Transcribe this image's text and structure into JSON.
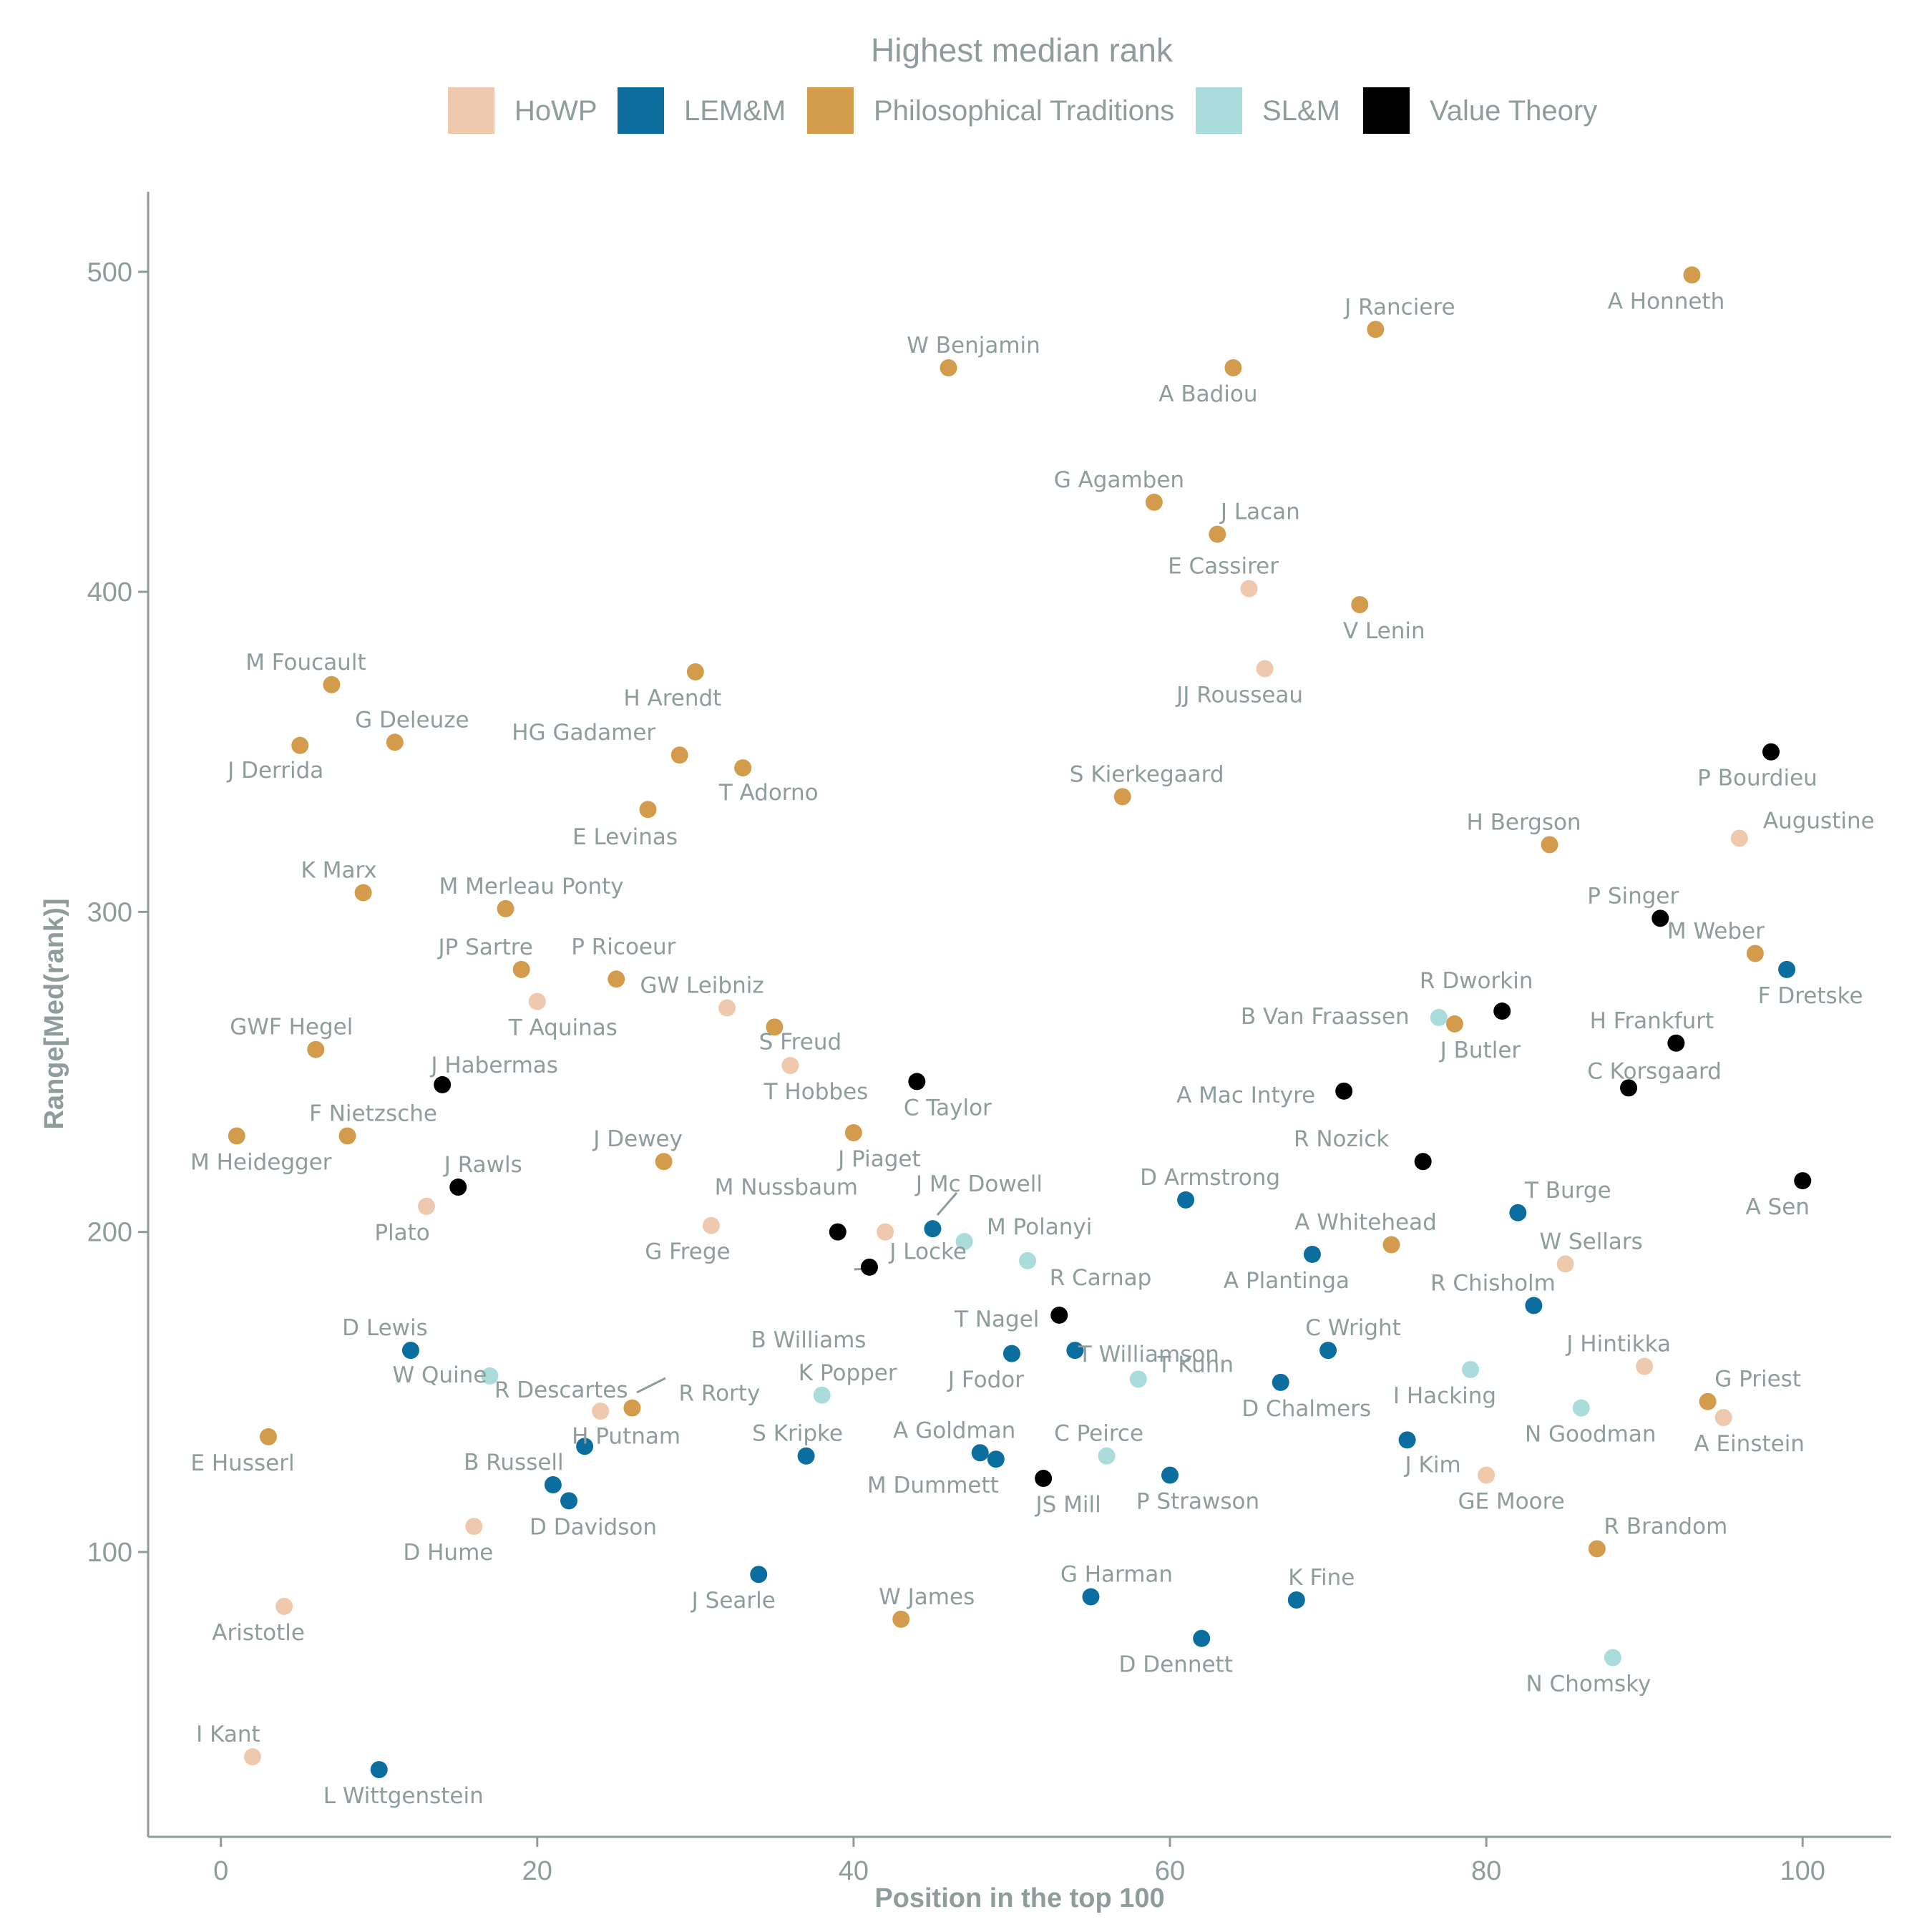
{
  "chart_data": {
    "type": "scatter",
    "xlabel": "Position in the top 100",
    "ylabel": "Range[Med(rank)]",
    "xlim": [
      -4.6,
      105.6
    ],
    "ylim": [
      11,
      525
    ],
    "xticks": [
      0,
      20,
      40,
      60,
      80,
      100
    ],
    "yticks": [
      100,
      200,
      300,
      400,
      500
    ],
    "grid": false,
    "legend": {
      "title": "Highest median rank",
      "placement": "top",
      "entries": [
        {
          "key": "HoWP",
          "label": "HoWP",
          "color": "#efc9ae"
        },
        {
          "key": "LEMM",
          "label": "LEM&M",
          "color": "#0b6e9f"
        },
        {
          "key": "PT",
          "label": "Philosophical Traditions",
          "color": "#d39c4c"
        },
        {
          "key": "SLM",
          "label": "SL&M",
          "color": "#aadcdc"
        },
        {
          "key": "VT",
          "label": "Value Theory",
          "color": "#000000"
        }
      ]
    },
    "points": [
      {
        "name": "M Heidegger",
        "x": 1,
        "y": 230,
        "group": "PT"
      },
      {
        "name": "I Kant",
        "x": 2,
        "y": 36,
        "group": "HoWP"
      },
      {
        "name": "E Husserl",
        "x": 3,
        "y": 136,
        "group": "PT"
      },
      {
        "name": "Aristotle",
        "x": 4,
        "y": 83,
        "group": "HoWP"
      },
      {
        "name": "J Derrida",
        "x": 5,
        "y": 352,
        "group": "PT"
      },
      {
        "name": "GWF Hegel",
        "x": 6,
        "y": 257,
        "group": "PT"
      },
      {
        "name": "M Foucault",
        "x": 7,
        "y": 371,
        "group": "PT"
      },
      {
        "name": "F Nietzsche",
        "x": 8,
        "y": 230,
        "group": "PT"
      },
      {
        "name": "K Marx",
        "x": 9,
        "y": 306,
        "group": "PT"
      },
      {
        "name": "L Wittgenstein",
        "x": 10,
        "y": 32,
        "group": "LEMM"
      },
      {
        "name": "G Deleuze",
        "x": 11,
        "y": 353,
        "group": "PT"
      },
      {
        "name": "D Lewis",
        "x": 12,
        "y": 163,
        "group": "LEMM"
      },
      {
        "name": "Plato",
        "x": 13,
        "y": 208,
        "group": "HoWP"
      },
      {
        "name": "J Habermas",
        "x": 14,
        "y": 246,
        "group": "VT"
      },
      {
        "name": "J Rawls",
        "x": 15,
        "y": 214,
        "group": "VT"
      },
      {
        "name": "D Hume",
        "x": 16,
        "y": 108,
        "group": "HoWP"
      },
      {
        "name": "W Quine",
        "x": 17,
        "y": 155,
        "group": "SLM"
      },
      {
        "name": "M Merleau Ponty",
        "x": 18,
        "y": 301,
        "group": "PT"
      },
      {
        "name": "JP Sartre",
        "x": 19,
        "y": 282,
        "group": "PT"
      },
      {
        "name": "T Aquinas",
        "x": 20,
        "y": 272,
        "group": "HoWP"
      },
      {
        "name": "B Russell",
        "x": 21,
        "y": 121,
        "group": "LEMM"
      },
      {
        "name": "D Davidson",
        "x": 22,
        "y": 116,
        "group": "LEMM"
      },
      {
        "name": "H Putnam",
        "x": 23,
        "y": 133,
        "group": "LEMM"
      },
      {
        "name": "R Descartes",
        "x": 24,
        "y": 144,
        "group": "HoWP"
      },
      {
        "name": "P Ricoeur",
        "x": 25,
        "y": 279,
        "group": "PT"
      },
      {
        "name": "R Rorty",
        "x": 26,
        "y": 145,
        "group": "PT"
      },
      {
        "name": "E Levinas",
        "x": 27,
        "y": 332,
        "group": "PT"
      },
      {
        "name": "J Dewey",
        "x": 28,
        "y": 222,
        "group": "PT"
      },
      {
        "name": "HG Gadamer",
        "x": 29,
        "y": 349,
        "group": "PT"
      },
      {
        "name": "H Arendt",
        "x": 30,
        "y": 375,
        "group": "PT"
      },
      {
        "name": "G Frege",
        "x": 31,
        "y": 202,
        "group": "HoWP"
      },
      {
        "name": "GW Leibniz",
        "x": 32,
        "y": 270,
        "group": "HoWP"
      },
      {
        "name": "T Adorno",
        "x": 33,
        "y": 345,
        "group": "PT"
      },
      {
        "name": "J Searle",
        "x": 34,
        "y": 93,
        "group": "LEMM"
      },
      {
        "name": "S Freud",
        "x": 35,
        "y": 264,
        "group": "PT"
      },
      {
        "name": "T Hobbes",
        "x": 36,
        "y": 252,
        "group": "HoWP"
      },
      {
        "name": "S Kripke",
        "x": 37,
        "y": 130,
        "group": "LEMM"
      },
      {
        "name": "K Popper",
        "x": 38,
        "y": 149,
        "group": "SLM"
      },
      {
        "name": "M Nussbaum",
        "x": 39,
        "y": 200,
        "group": "VT"
      },
      {
        "name": "J Piaget",
        "x": 40,
        "y": 231,
        "group": "PT"
      },
      {
        "name": "B Williams",
        "x": 41,
        "y": 189,
        "group": "VT"
      },
      {
        "name": "J Locke",
        "x": 42,
        "y": 200,
        "group": "HoWP"
      },
      {
        "name": "W James",
        "x": 43,
        "y": 79,
        "group": "PT"
      },
      {
        "name": "C Taylor",
        "x": 44,
        "y": 247,
        "group": "VT"
      },
      {
        "name": "J Mc Dowell",
        "x": 45,
        "y": 201,
        "group": "LEMM"
      },
      {
        "name": "W Benjamin",
        "x": 46,
        "y": 470,
        "group": "PT"
      },
      {
        "name": "M Polanyi",
        "x": 47,
        "y": 197,
        "group": "SLM"
      },
      {
        "name": "A Goldman",
        "x": 48,
        "y": 131,
        "group": "LEMM"
      },
      {
        "name": "M Dummett",
        "x": 49,
        "y": 129,
        "group": "LEMM"
      },
      {
        "name": "J Fodor",
        "x": 50,
        "y": 162,
        "group": "LEMM"
      },
      {
        "name": "R Carnap",
        "x": 51,
        "y": 191,
        "group": "SLM"
      },
      {
        "name": "JS Mill",
        "x": 52,
        "y": 123,
        "group": "VT"
      },
      {
        "name": "T Nagel",
        "x": 53,
        "y": 174,
        "group": "VT"
      },
      {
        "name": "T Williamson",
        "x": 54,
        "y": 163,
        "group": "LEMM"
      },
      {
        "name": "G Harman",
        "x": 55,
        "y": 86,
        "group": "LEMM"
      },
      {
        "name": "C Peirce",
        "x": 56,
        "y": 130,
        "group": "SLM"
      },
      {
        "name": "S Kierkegaard",
        "x": 57,
        "y": 336,
        "group": "PT"
      },
      {
        "name": "T Kuhn",
        "x": 58,
        "y": 154,
        "group": "SLM"
      },
      {
        "name": "G Agamben",
        "x": 59,
        "y": 428,
        "group": "PT"
      },
      {
        "name": "P Strawson",
        "x": 60,
        "y": 124,
        "group": "LEMM"
      },
      {
        "name": "D Armstrong",
        "x": 61,
        "y": 210,
        "group": "LEMM"
      },
      {
        "name": "D Dennett",
        "x": 62,
        "y": 73,
        "group": "LEMM"
      },
      {
        "name": "J Lacan",
        "x": 63,
        "y": 418,
        "group": "PT"
      },
      {
        "name": "A Badiou",
        "x": 64,
        "y": 470,
        "group": "PT"
      },
      {
        "name": "E Cassirer",
        "x": 65,
        "y": 401,
        "group": "HoWP"
      },
      {
        "name": "JJ Rousseau",
        "x": 66,
        "y": 376,
        "group": "HoWP"
      },
      {
        "name": "D Chalmers",
        "x": 67,
        "y": 153,
        "group": "LEMM"
      },
      {
        "name": "K Fine",
        "x": 68,
        "y": 85,
        "group": "LEMM"
      },
      {
        "name": "A Plantinga",
        "x": 69,
        "y": 193,
        "group": "LEMM"
      },
      {
        "name": "C Wright",
        "x": 70,
        "y": 163,
        "group": "LEMM"
      },
      {
        "name": "A Mac Intyre",
        "x": 71,
        "y": 244,
        "group": "VT"
      },
      {
        "name": "V Lenin",
        "x": 72,
        "y": 396,
        "group": "PT"
      },
      {
        "name": "J Ranciere",
        "x": 73,
        "y": 482,
        "group": "PT"
      },
      {
        "name": "A Whitehead",
        "x": 74,
        "y": 196,
        "group": "PT"
      },
      {
        "name": "J Kim",
        "x": 75,
        "y": 135,
        "group": "LEMM"
      },
      {
        "name": "R Nozick",
        "x": 76,
        "y": 222,
        "group": "VT"
      },
      {
        "name": "B Van Fraassen",
        "x": 77,
        "y": 267,
        "group": "SLM"
      },
      {
        "name": "J Butler",
        "x": 78,
        "y": 265,
        "group": "PT"
      },
      {
        "name": "I Hacking",
        "x": 79,
        "y": 157,
        "group": "SLM"
      },
      {
        "name": "GE Moore",
        "x": 80,
        "y": 124,
        "group": "HoWP"
      },
      {
        "name": "R Dworkin",
        "x": 81,
        "y": 269,
        "group": "VT"
      },
      {
        "name": "T Burge",
        "x": 82,
        "y": 206,
        "group": "LEMM"
      },
      {
        "name": "R Chisholm",
        "x": 83,
        "y": 177,
        "group": "LEMM"
      },
      {
        "name": "H Bergson",
        "x": 84,
        "y": 321,
        "group": "PT"
      },
      {
        "name": "W Sellars",
        "x": 85,
        "y": 190,
        "group": "HoWP"
      },
      {
        "name": "N Goodman",
        "x": 86,
        "y": 145,
        "group": "SLM"
      },
      {
        "name": "R Brandom",
        "x": 87,
        "y": 101,
        "group": "PT"
      },
      {
        "name": "N Chomsky",
        "x": 88,
        "y": 67,
        "group": "SLM"
      },
      {
        "name": "C Korsgaard",
        "x": 89,
        "y": 245,
        "group": "VT"
      },
      {
        "name": "J Hintikka",
        "x": 90,
        "y": 158,
        "group": "HoWP"
      },
      {
        "name": "P Singer",
        "x": 91,
        "y": 298,
        "group": "VT"
      },
      {
        "name": "H Frankfurt",
        "x": 92,
        "y": 259,
        "group": "VT"
      },
      {
        "name": "A Honneth",
        "x": 93,
        "y": 499,
        "group": "PT"
      },
      {
        "name": "G Priest",
        "x": 94,
        "y": 147,
        "group": "PT"
      },
      {
        "name": "A Einstein",
        "x": 95,
        "y": 142,
        "group": "HoWP"
      },
      {
        "name": "Augustine",
        "x": 96,
        "y": 323,
        "group": "HoWP"
      },
      {
        "name": "M Weber",
        "x": 97,
        "y": 287,
        "group": "PT"
      },
      {
        "name": "P Bourdieu",
        "x": 98,
        "y": 350,
        "group": "VT"
      },
      {
        "name": "F Dretske",
        "x": 99,
        "y": 282,
        "group": "LEMM"
      },
      {
        "name": "A Sen",
        "x": 100,
        "y": 216,
        "group": "VT"
      }
    ]
  }
}
